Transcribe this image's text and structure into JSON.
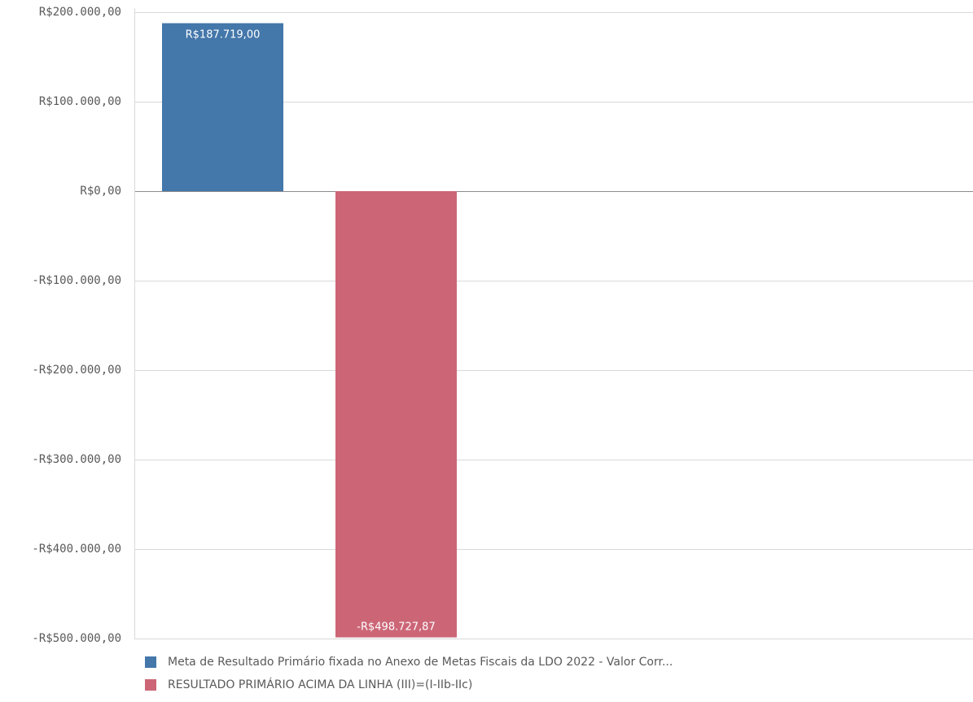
{
  "chart_data": {
    "type": "bar",
    "categories": [
      "Meta de Resultado Primário fixada no Anexo de Metas Fiscais da LDO 2022 - Valor Corr...",
      "RESULTADO PRIMÁRIO ACIMA DA LINHA (III)=(I-IIb-IIc)"
    ],
    "values": [
      187719.0,
      -498727.87
    ],
    "data_labels": [
      "R$187.719,00",
      "-R$498.727,87"
    ],
    "colors": [
      "#4477aa",
      "#cc6677"
    ],
    "ylim": [
      -500000,
      200000
    ],
    "yticks": [
      200000,
      100000,
      0,
      -100000,
      -200000,
      -300000,
      -400000,
      -500000
    ],
    "ytick_labels": [
      "R$200.000,00",
      "R$100.000,00",
      "R$0,00",
      "-R$100.000,00",
      "-R$200.000,00",
      "-R$300.000,00",
      "-R$400.000,00",
      "-R$500.000,00"
    ],
    "grid": true,
    "legend_position": "bottom-left",
    "title": "",
    "xlabel": "",
    "ylabel": ""
  },
  "legend": {
    "items": [
      {
        "label": "Meta de Resultado Primário fixada no Anexo de Metas Fiscais da LDO 2022 - Valor Corr...",
        "color": "#4477aa"
      },
      {
        "label": "RESULTADO PRIMÁRIO ACIMA DA LINHA (III)=(I-IIb-IIc)",
        "color": "#cc6677"
      }
    ]
  }
}
